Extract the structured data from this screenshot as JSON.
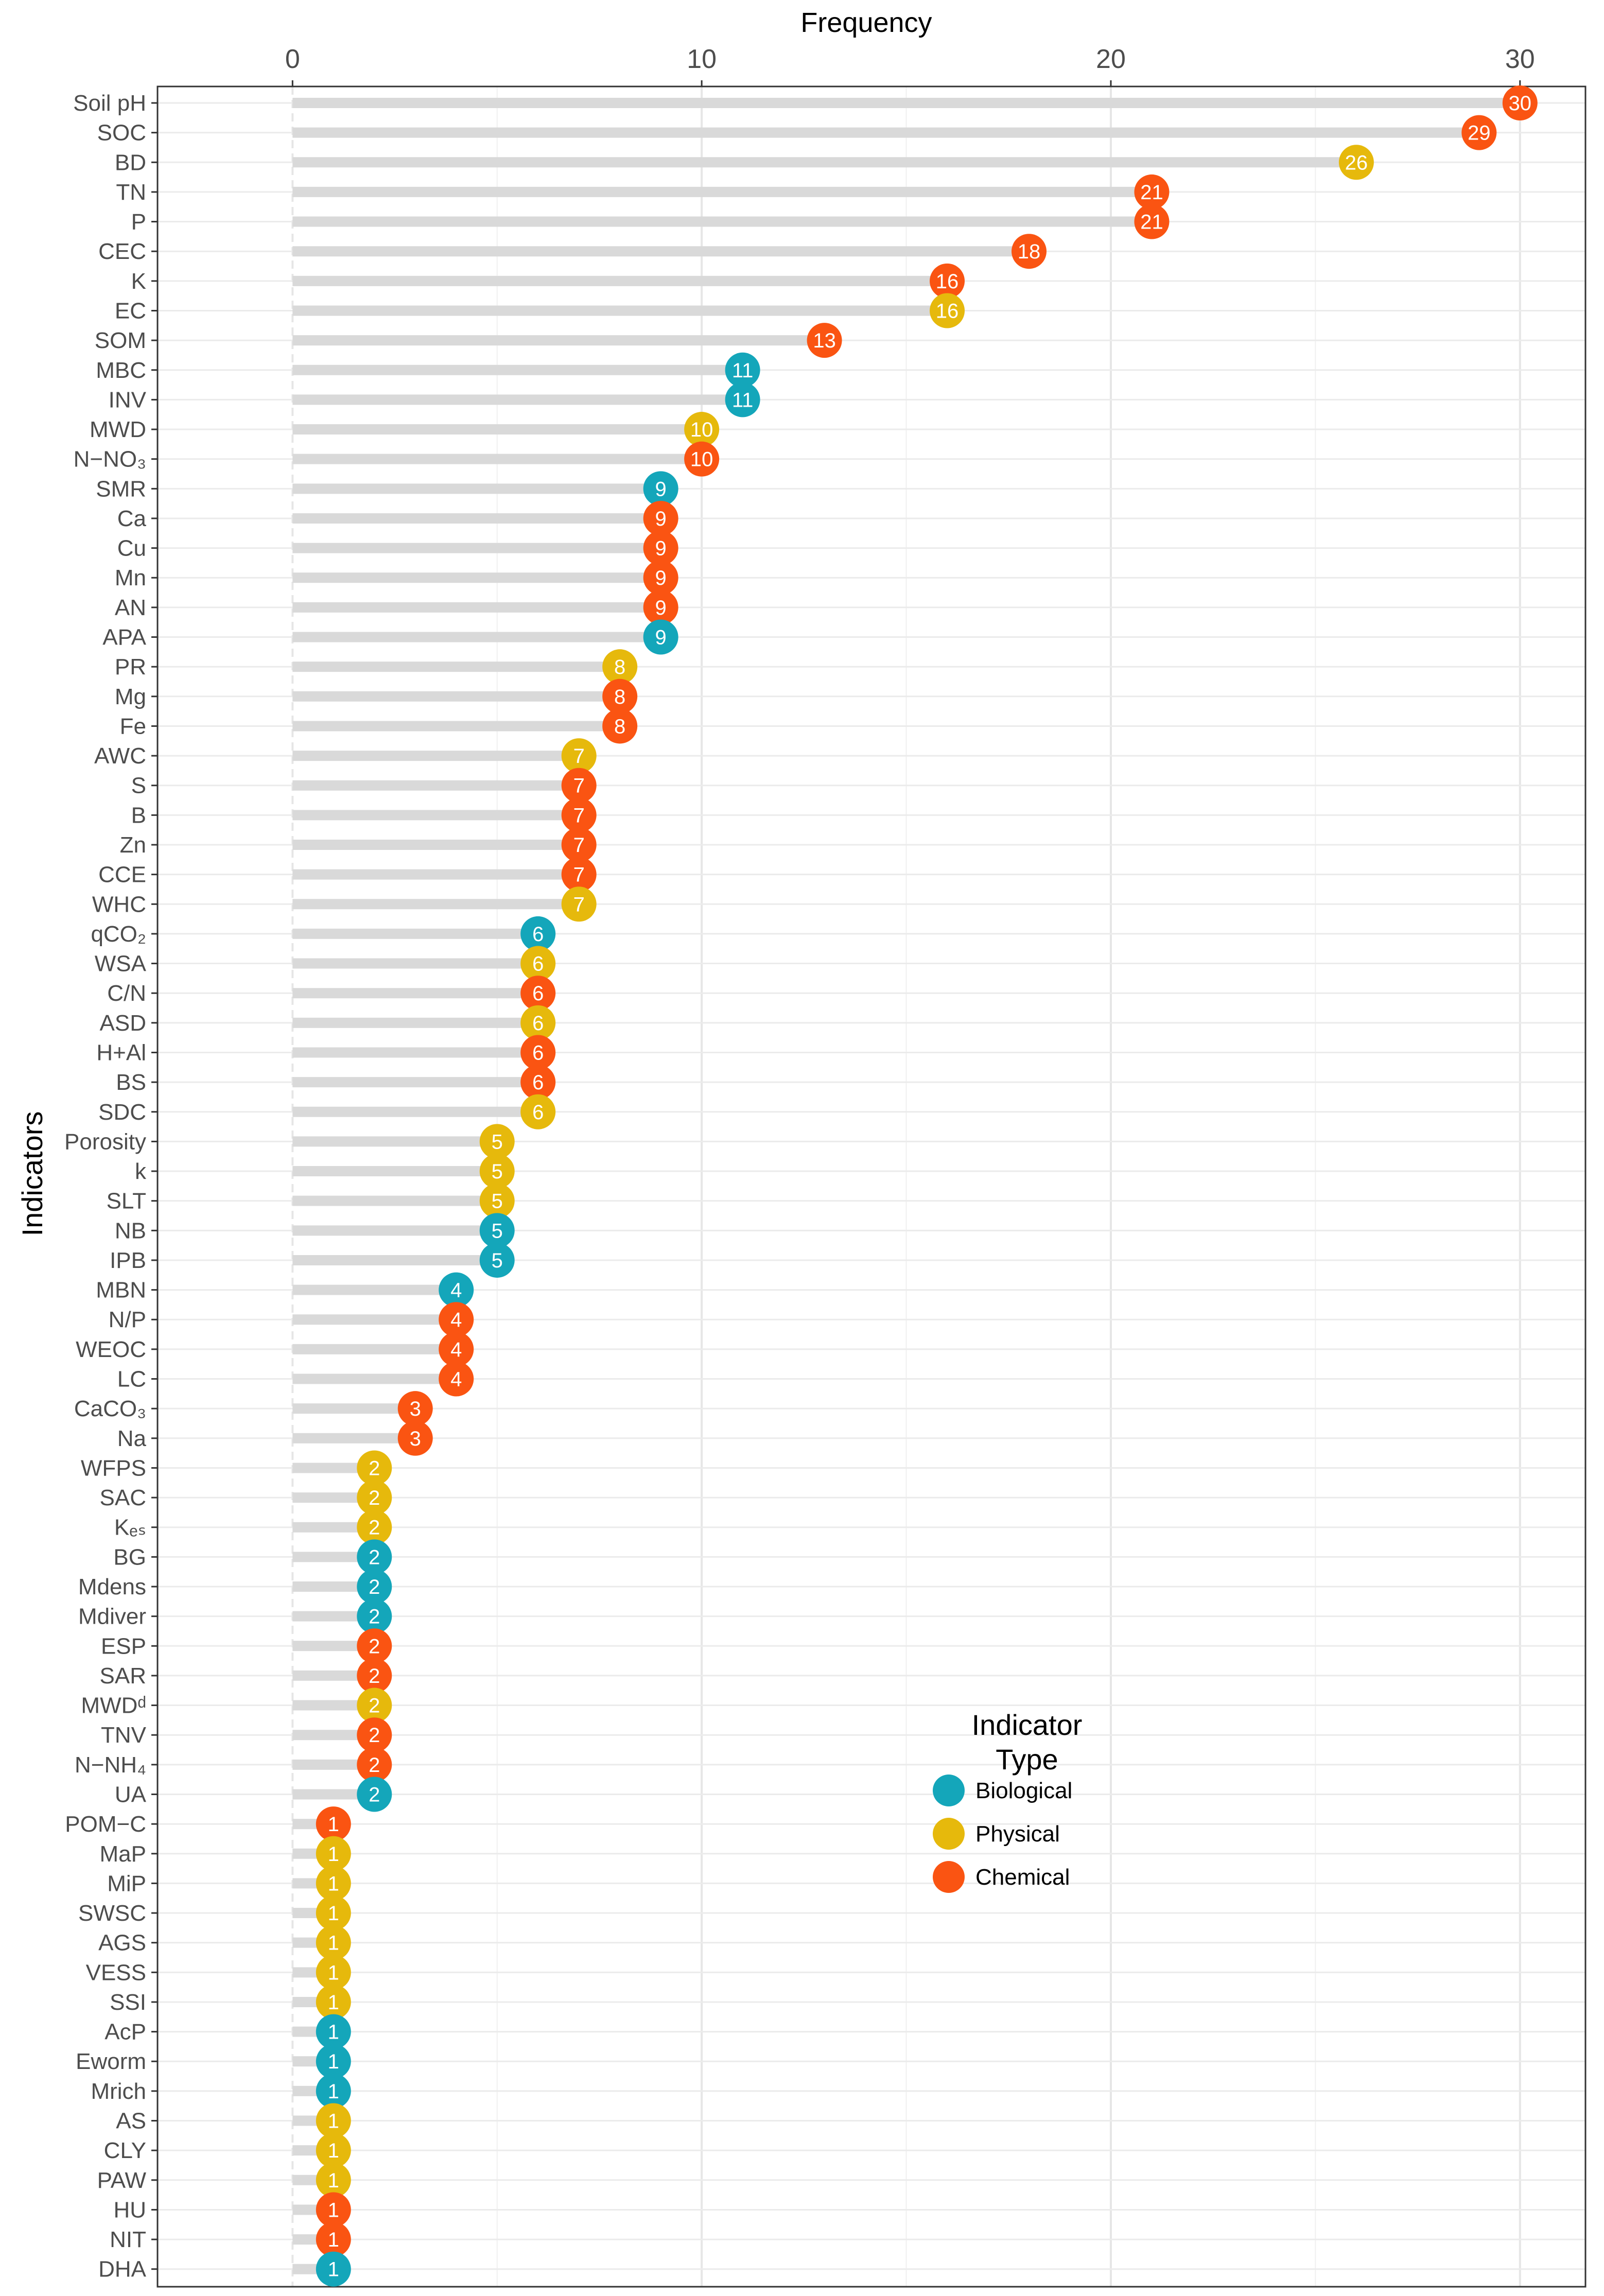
{
  "chart_data": {
    "type": "lollipop",
    "title": "",
    "xlabel": "Frequency",
    "ylabel": "Indicators",
    "xlim": [
      -3.3,
      31.6
    ],
    "xticks": [
      0,
      10,
      20,
      30
    ],
    "xtick_labels": [
      "0",
      "10",
      "20",
      "30"
    ],
    "grid": true,
    "x_axis_position": "top",
    "legend": {
      "title_line1": "Indicator",
      "title_line2": "Type",
      "placement": "inside-right",
      "entries": [
        {
          "name": "Biological",
          "color": "#14A6BA"
        },
        {
          "name": "Physical",
          "color": "#E6B90C"
        },
        {
          "name": "Chemical",
          "color": "#FA5412"
        }
      ]
    },
    "colors": {
      "Biological": "#14A6BA",
      "Physical": "#E6B90C",
      "Chemical": "#FA5412",
      "segment": "#d9d9d9"
    },
    "points": [
      {
        "label": "Soil pH",
        "value": 30,
        "type": "Chemical"
      },
      {
        "label": "SOC",
        "value": 29,
        "type": "Chemical"
      },
      {
        "label": "BD",
        "value": 26,
        "type": "Physical"
      },
      {
        "label": "TN",
        "value": 21,
        "type": "Chemical"
      },
      {
        "label": "P",
        "value": 21,
        "type": "Chemical"
      },
      {
        "label": "CEC",
        "value": 18,
        "type": "Chemical"
      },
      {
        "label": "K",
        "value": 16,
        "type": "Chemical"
      },
      {
        "label": "EC",
        "value": 16,
        "type": "Physical"
      },
      {
        "label": "SOM",
        "value": 13,
        "type": "Chemical"
      },
      {
        "label": "MBC",
        "value": 11,
        "type": "Biological"
      },
      {
        "label": "INV",
        "value": 11,
        "type": "Biological"
      },
      {
        "label": "MWD",
        "value": 10,
        "type": "Physical"
      },
      {
        "label": "N−NO₃",
        "value": 10,
        "type": "Chemical"
      },
      {
        "label": "SMR",
        "value": 9,
        "type": "Biological"
      },
      {
        "label": "Ca",
        "value": 9,
        "type": "Chemical"
      },
      {
        "label": "Cu",
        "value": 9,
        "type": "Chemical"
      },
      {
        "label": "Mn",
        "value": 9,
        "type": "Chemical"
      },
      {
        "label": "AN",
        "value": 9,
        "type": "Chemical"
      },
      {
        "label": "APA",
        "value": 9,
        "type": "Biological"
      },
      {
        "label": "PR",
        "value": 8,
        "type": "Physical"
      },
      {
        "label": "Mg",
        "value": 8,
        "type": "Chemical"
      },
      {
        "label": "Fe",
        "value": 8,
        "type": "Chemical"
      },
      {
        "label": "AWC",
        "value": 7,
        "type": "Physical"
      },
      {
        "label": "S",
        "value": 7,
        "type": "Chemical"
      },
      {
        "label": "B",
        "value": 7,
        "type": "Chemical"
      },
      {
        "label": "Zn",
        "value": 7,
        "type": "Chemical"
      },
      {
        "label": "CCE",
        "value": 7,
        "type": "Chemical"
      },
      {
        "label": "WHC",
        "value": 7,
        "type": "Physical"
      },
      {
        "label": "qCO₂",
        "value": 6,
        "type": "Biological"
      },
      {
        "label": "WSA",
        "value": 6,
        "type": "Physical"
      },
      {
        "label": "C/N",
        "value": 6,
        "type": "Chemical"
      },
      {
        "label": "ASD",
        "value": 6,
        "type": "Physical"
      },
      {
        "label": "H+Al",
        "value": 6,
        "type": "Chemical"
      },
      {
        "label": "BS",
        "value": 6,
        "type": "Chemical"
      },
      {
        "label": "SDC",
        "value": 6,
        "type": "Physical"
      },
      {
        "label": "Porosity",
        "value": 5,
        "type": "Physical"
      },
      {
        "label": "k",
        "value": 5,
        "type": "Physical"
      },
      {
        "label": "SLT",
        "value": 5,
        "type": "Physical"
      },
      {
        "label": "NB",
        "value": 5,
        "type": "Biological"
      },
      {
        "label": "IPB",
        "value": 5,
        "type": "Biological"
      },
      {
        "label": "MBN",
        "value": 4,
        "type": "Biological"
      },
      {
        "label": "N/P",
        "value": 4,
        "type": "Chemical"
      },
      {
        "label": "WEOC",
        "value": 4,
        "type": "Chemical"
      },
      {
        "label": "LC",
        "value": 4,
        "type": "Chemical"
      },
      {
        "label": "CaCO₃",
        "value": 3,
        "type": "Chemical"
      },
      {
        "label": "Na",
        "value": 3,
        "type": "Chemical"
      },
      {
        "label": "WFPS",
        "value": 2,
        "type": "Physical"
      },
      {
        "label": "SAC",
        "value": 2,
        "type": "Physical"
      },
      {
        "label": "Kₑₛ",
        "value": 2,
        "type": "Physical"
      },
      {
        "label": "BG",
        "value": 2,
        "type": "Biological"
      },
      {
        "label": "Mdens",
        "value": 2,
        "type": "Biological"
      },
      {
        "label": "Mdiver",
        "value": 2,
        "type": "Biological"
      },
      {
        "label": "ESP",
        "value": 2,
        "type": "Chemical"
      },
      {
        "label": "SAR",
        "value": 2,
        "type": "Chemical"
      },
      {
        "label": "MWDᵈ",
        "value": 2,
        "type": "Physical"
      },
      {
        "label": "TNV",
        "value": 2,
        "type": "Chemical"
      },
      {
        "label": "N−NH₄",
        "value": 2,
        "type": "Chemical"
      },
      {
        "label": "UA",
        "value": 2,
        "type": "Biological"
      },
      {
        "label": "POM−C",
        "value": 1,
        "type": "Chemical"
      },
      {
        "label": "MaP",
        "value": 1,
        "type": "Physical"
      },
      {
        "label": "MiP",
        "value": 1,
        "type": "Physical"
      },
      {
        "label": "SWSC",
        "value": 1,
        "type": "Physical"
      },
      {
        "label": "AGS",
        "value": 1,
        "type": "Physical"
      },
      {
        "label": "VESS",
        "value": 1,
        "type": "Physical"
      },
      {
        "label": "SSI",
        "value": 1,
        "type": "Physical"
      },
      {
        "label": "AcP",
        "value": 1,
        "type": "Biological"
      },
      {
        "label": "Eworm",
        "value": 1,
        "type": "Biological"
      },
      {
        "label": "Mrich",
        "value": 1,
        "type": "Biological"
      },
      {
        "label": "AS",
        "value": 1,
        "type": "Physical"
      },
      {
        "label": "CLY",
        "value": 1,
        "type": "Physical"
      },
      {
        "label": "PAW",
        "value": 1,
        "type": "Physical"
      },
      {
        "label": "HU",
        "value": 1,
        "type": "Chemical"
      },
      {
        "label": "NIT",
        "value": 1,
        "type": "Chemical"
      },
      {
        "label": "DHA",
        "value": 1,
        "type": "Biological"
      }
    ]
  }
}
